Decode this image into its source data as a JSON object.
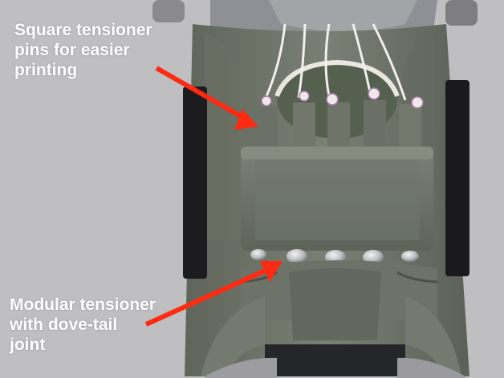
{
  "annotations": {
    "top_callout": "Square tensioner\npins for easier\nprinting",
    "bottom_callout": "Modular tensioner\nwith dove-tail\njoint"
  },
  "colors": {
    "background": "#bdbcbf",
    "print_body": "#6f7569",
    "arrow": "#ff2a12",
    "label_text": "#ffffff"
  }
}
